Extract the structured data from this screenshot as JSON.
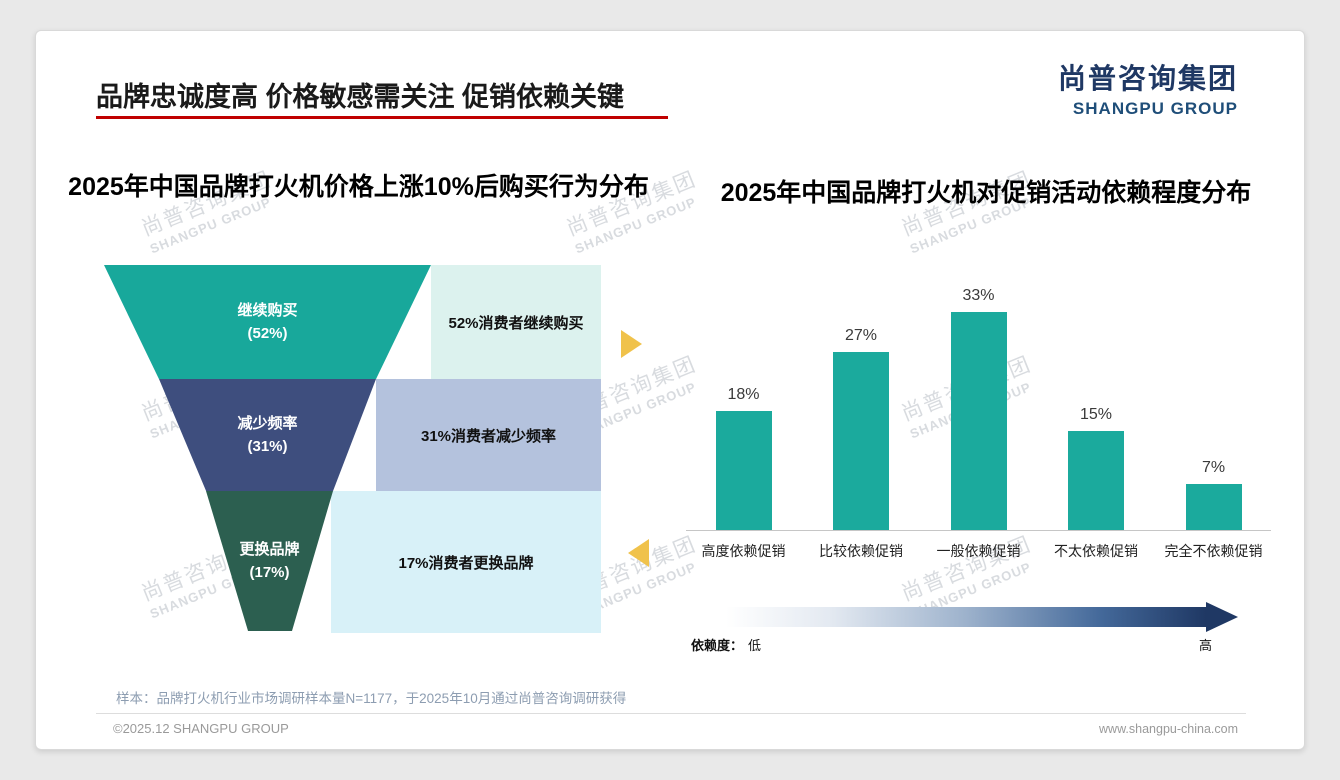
{
  "header": {
    "title": "品牌忠诚度高 价格敏感需关注 促销依赖关键",
    "logo_cn": "尚普咨询集团",
    "logo_en": "SHANGPU GROUP",
    "underline_color": "#c00000",
    "logo_color": "#1f3864"
  },
  "watermark": {
    "line1": "尚普咨询集团",
    "line2": "SHANGPU GROUP"
  },
  "chart_data": [
    {
      "type": "funnel",
      "title": "2025年中国品牌打火机价格上涨10%后购买行为分布",
      "stages": [
        {
          "label": "继续购买",
          "pct_label": "(52%)",
          "value": 52,
          "annotation": "52%消费者继续购买",
          "color": "#18a89b",
          "annotation_bg": "#dcf2ee"
        },
        {
          "label": "减少频率",
          "pct_label": "(31%)",
          "value": 31,
          "annotation": "31%消费者减少频率",
          "color": "#3e4e7e",
          "annotation_bg": "#b4c2dd"
        },
        {
          "label": "更换品牌",
          "pct_label": "(17%)",
          "value": 17,
          "annotation": "17%消费者更换品牌",
          "color": "#2c5f50",
          "annotation_bg": "#d8f1f8"
        }
      ],
      "arrow_color": "#f0c24b"
    },
    {
      "type": "bar",
      "title": "2025年中国品牌打火机对促销活动依赖程度分布",
      "categories": [
        "高度依赖促销",
        "比较依赖促销",
        "一般依赖促销",
        "不太依赖促销",
        "完全不依赖促销"
      ],
      "values": [
        18,
        27,
        33,
        15,
        7
      ],
      "value_labels": [
        "18%",
        "27%",
        "33%",
        "15%",
        "7%"
      ],
      "bar_color": "#1baa9d",
      "ylim": [
        0,
        36
      ],
      "grid": false,
      "legend": "none",
      "axis": {
        "label": "依赖度：",
        "low": "低",
        "high": "高"
      }
    }
  ],
  "footnote": "样本：品牌打火机行业市场调研样本量N=1177，于2025年10月通过尚普咨询调研获得",
  "footer": {
    "left": "©2025.12 SHANGPU GROUP",
    "right": "www.shangpu-china.com"
  }
}
